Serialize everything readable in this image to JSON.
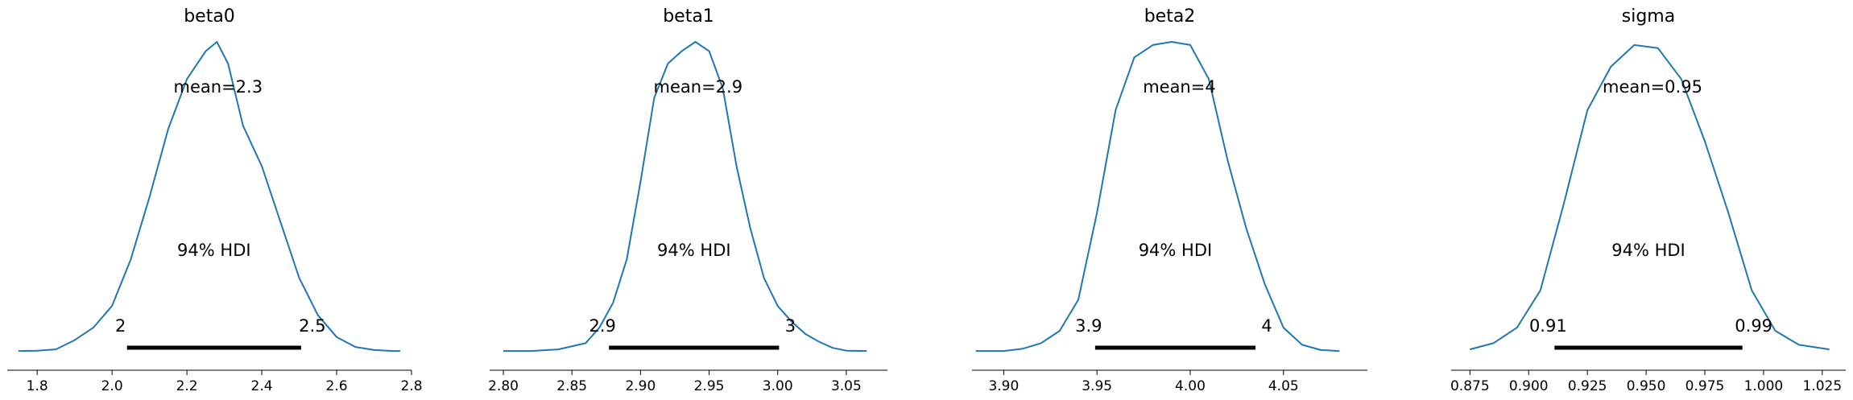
{
  "chart_data": [
    {
      "type": "area",
      "title": "beta0",
      "mean_label": "mean=2.3",
      "hdi_label": "94% HDI",
      "hdi_low_label": "2",
      "hdi_high_label": "2.5",
      "hdi": [
        2.04,
        2.505
      ],
      "xlim": [
        1.72,
        2.8
      ],
      "ticks": [
        1.8,
        2.0,
        2.2,
        2.4,
        2.6,
        2.8
      ],
      "tick_labels": [
        "1.8",
        "2.0",
        "2.2",
        "2.4",
        "2.6",
        "2.8"
      ],
      "line_color": "#1f77b4",
      "x": [
        1.75,
        1.8,
        1.85,
        1.9,
        1.95,
        2.0,
        2.05,
        2.1,
        2.15,
        2.2,
        2.25,
        2.28,
        2.31,
        2.35,
        2.4,
        2.45,
        2.5,
        2.55,
        2.6,
        2.65,
        2.7,
        2.75,
        2.77
      ],
      "density": [
        0.005,
        0.006,
        0.01,
        0.04,
        0.08,
        0.15,
        0.3,
        0.5,
        0.72,
        0.88,
        0.97,
        1.0,
        0.93,
        0.73,
        0.6,
        0.42,
        0.24,
        0.12,
        0.05,
        0.018,
        0.008,
        0.005,
        0.005
      ]
    },
    {
      "type": "area",
      "title": "beta1",
      "mean_label": "mean=2.9",
      "hdi_label": "94% HDI",
      "hdi_low_label": "2.9",
      "hdi_high_label": "3",
      "hdi": [
        2.877,
        3.001
      ],
      "xlim": [
        2.79,
        3.08
      ],
      "ticks": [
        2.8,
        2.85,
        2.9,
        2.95,
        3.0,
        3.05
      ],
      "tick_labels": [
        "2.80",
        "2.85",
        "2.90",
        "2.95",
        "3.00",
        "3.05"
      ],
      "line_color": "#1f77b4",
      "x": [
        2.8,
        2.82,
        2.84,
        2.86,
        2.87,
        2.88,
        2.89,
        2.9,
        2.91,
        2.92,
        2.93,
        2.94,
        2.95,
        2.96,
        2.97,
        2.98,
        2.99,
        3.0,
        3.01,
        3.02,
        3.03,
        3.04,
        3.05,
        3.065
      ],
      "density": [
        0.005,
        0.005,
        0.01,
        0.03,
        0.08,
        0.16,
        0.3,
        0.55,
        0.82,
        0.93,
        0.97,
        1.0,
        0.97,
        0.85,
        0.6,
        0.4,
        0.24,
        0.15,
        0.1,
        0.06,
        0.035,
        0.015,
        0.006,
        0.005
      ]
    },
    {
      "type": "area",
      "title": "beta2",
      "mean_label": "mean=4",
      "hdi_label": "94% HDI",
      "hdi_low_label": "3.9",
      "hdi_high_label": "4",
      "hdi": [
        3.949,
        4.035
      ],
      "xlim": [
        3.883,
        4.095
      ],
      "ticks": [
        3.9,
        3.95,
        4.0,
        4.05
      ],
      "tick_labels": [
        "3.90",
        "3.95",
        "4.00",
        "4.05"
      ],
      "line_color": "#1f77b4",
      "x": [
        3.885,
        3.9,
        3.91,
        3.92,
        3.93,
        3.94,
        3.95,
        3.96,
        3.97,
        3.98,
        3.99,
        4.0,
        4.01,
        4.02,
        4.03,
        4.04,
        4.05,
        4.06,
        4.07,
        4.08
      ],
      "density": [
        0.005,
        0.005,
        0.012,
        0.03,
        0.07,
        0.17,
        0.45,
        0.78,
        0.95,
        0.99,
        1.0,
        0.99,
        0.88,
        0.62,
        0.4,
        0.22,
        0.08,
        0.025,
        0.008,
        0.005
      ]
    },
    {
      "type": "area",
      "title": "sigma",
      "mean_label": "mean=0.95",
      "hdi_label": "94% HDI",
      "hdi_low_label": "0.91",
      "hdi_high_label": "0.99",
      "hdi": [
        0.911,
        0.991
      ],
      "xlim": [
        0.867,
        1.035
      ],
      "ticks": [
        0.875,
        0.9,
        0.925,
        0.95,
        0.975,
        1.0,
        1.025
      ],
      "tick_labels": [
        "0.875",
        "0.900",
        "0.925",
        "0.950",
        "0.975",
        "1.000",
        "1.025"
      ],
      "line_color": "#1f77b4",
      "x": [
        0.875,
        0.885,
        0.895,
        0.905,
        0.915,
        0.925,
        0.935,
        0.945,
        0.955,
        0.965,
        0.975,
        0.985,
        0.995,
        1.005,
        1.015,
        1.028
      ],
      "density": [
        0.01,
        0.03,
        0.08,
        0.2,
        0.48,
        0.78,
        0.92,
        0.99,
        0.98,
        0.88,
        0.68,
        0.45,
        0.2,
        0.07,
        0.025,
        0.01
      ]
    }
  ]
}
